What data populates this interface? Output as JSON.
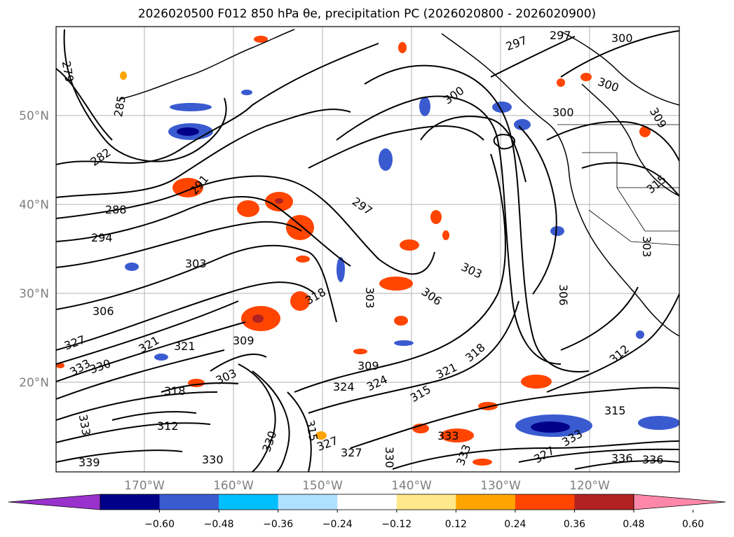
{
  "title": "2026020500 F012 850 hPa θe, precipitation PC (2026020800 - 2026020900)",
  "lat_labels": [
    "50°N",
    "40°N",
    "30°N",
    "20°N"
  ],
  "lon_labels": [
    "170°W",
    "160°W",
    "150°W",
    "140°W",
    "130°W",
    "120°W"
  ],
  "colorbar": {
    "ticks": [
      "−0.60",
      "−0.48",
      "−0.36",
      "−0.24",
      "−0.12",
      "0.12",
      "0.24",
      "0.36",
      "0.48",
      "0.60"
    ],
    "colors": [
      "#9932cc",
      "#00008b",
      "#3a5bd0",
      "#00bfff",
      "#b0e0ff",
      "#ffffff",
      "#ffe98a",
      "#ffa500",
      "#ff4500",
      "#b22222",
      "#ff88aa"
    ]
  },
  "contour_labels": [
    "279",
    "285",
    "282",
    "288",
    "291",
    "294",
    "297",
    "300",
    "303",
    "306",
    "309",
    "312",
    "315",
    "318",
    "321",
    "324",
    "327",
    "330",
    "333",
    "336",
    "339"
  ],
  "contour_label_instances": [
    {
      "label_ref": "279"
    },
    {
      "label_ref": "285"
    },
    {
      "label_ref": "282"
    },
    {
      "label_ref": "291"
    },
    {
      "label_ref": "288"
    },
    {
      "label_ref": "294"
    },
    {
      "label_ref": "303"
    },
    {
      "label_ref": "306"
    },
    {
      "label_ref": "297"
    },
    {
      "label_ref": "300"
    },
    {
      "label_ref": "318"
    },
    {
      "label_ref": "303"
    },
    {
      "label_ref": "306"
    },
    {
      "label_ref": "303"
    },
    {
      "label_ref": "306"
    },
    {
      "label_ref": "321"
    },
    {
      "label_ref": "324"
    },
    {
      "label_ref": "309"
    },
    {
      "label_ref": "312"
    },
    {
      "label_ref": "315"
    },
    {
      "label_ref": "318"
    },
    {
      "label_ref": "327"
    },
    {
      "label_ref": "330"
    },
    {
      "label_ref": "333"
    },
    {
      "label_ref": "336"
    },
    {
      "label_ref": "339"
    },
    {
      "label_ref": "321"
    },
    {
      "label_ref": "324"
    },
    {
      "label_ref": "315"
    },
    {
      "label_ref": "312"
    },
    {
      "label_ref": "330"
    },
    {
      "label_ref": "336"
    },
    {
      "label_ref": "297"
    },
    {
      "label_ref": "300"
    },
    {
      "label_ref": "309"
    },
    {
      "label_ref": "303"
    }
  ]
}
